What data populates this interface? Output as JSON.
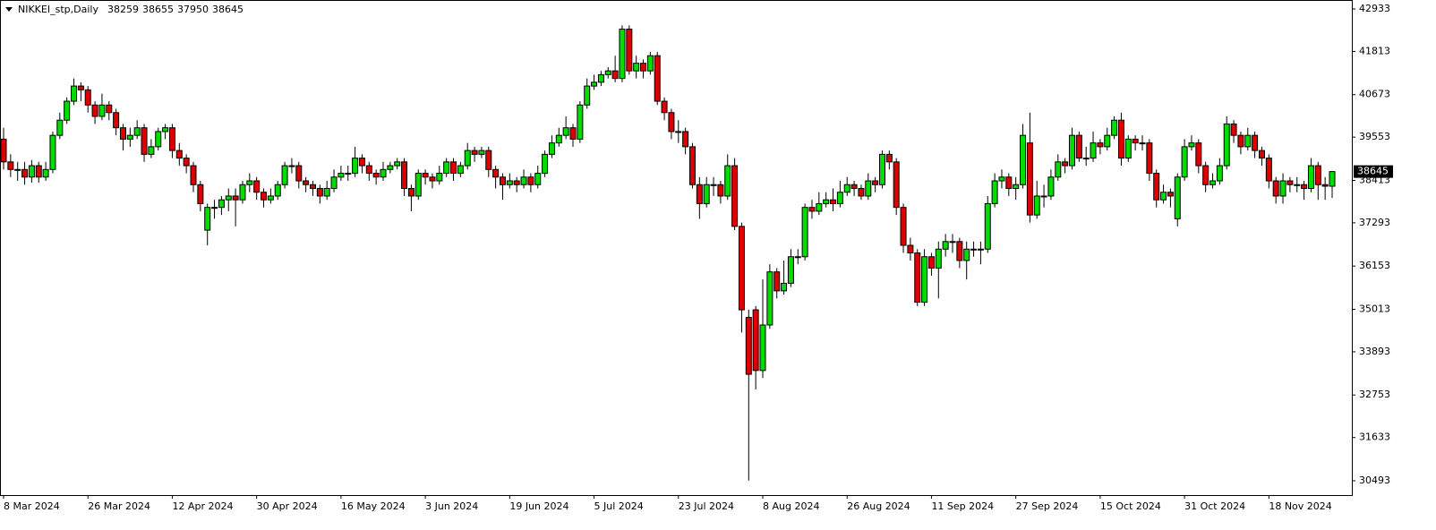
{
  "chart_data": {
    "type": "candlestick",
    "title": "NIKKEI_stp,Daily",
    "categories": [
      "8 Mar 2024",
      null,
      null,
      null,
      null,
      null,
      null,
      null,
      null,
      null,
      null,
      null,
      "26 Mar 2024",
      null,
      null,
      null,
      null,
      null,
      null,
      null,
      null,
      null,
      null,
      null,
      "12 Apr 2024",
      null,
      null,
      null,
      null,
      null,
      null,
      null,
      null,
      null,
      null,
      null,
      "30 Apr 2024",
      null,
      null,
      null,
      null,
      null,
      null,
      null,
      null,
      null,
      null,
      null,
      "16 May 2024",
      null,
      null,
      null,
      null,
      null,
      null,
      null,
      null,
      null,
      null,
      null,
      "3 Jun 2024",
      null,
      null,
      null,
      null,
      null,
      null,
      null,
      null,
      null,
      null,
      null,
      "19 Jun 2024",
      null,
      null,
      null,
      null,
      null,
      null,
      null,
      null,
      null,
      null,
      null,
      "5 Jul 2024",
      null,
      null,
      null,
      null,
      null,
      null,
      null,
      null,
      null,
      null,
      null,
      "23 Jul 2024",
      null,
      null,
      null,
      null,
      null,
      null,
      null,
      null,
      null,
      null,
      null,
      "8 Aug 2024",
      null,
      null,
      null,
      null,
      null,
      null,
      null,
      null,
      null,
      null,
      null,
      "26 Aug 2024",
      null,
      null,
      null,
      null,
      null,
      null,
      null,
      null,
      null,
      null,
      null,
      "11 Sep 2024",
      null,
      null,
      null,
      null,
      null,
      null,
      null,
      null,
      null,
      null,
      null,
      "27 Sep 2024",
      null,
      null,
      null,
      null,
      null,
      null,
      null,
      null,
      null,
      null,
      null,
      "15 Oct 2024",
      null,
      null,
      null,
      null,
      null,
      null,
      null,
      null,
      null,
      null,
      null,
      "31 Oct 2024",
      null,
      null,
      null,
      null,
      null,
      null,
      null,
      null,
      null,
      null,
      null,
      "18 Nov 2024",
      null,
      null,
      null,
      null,
      null,
      null,
      null,
      null,
      null
    ],
    "open": [
      39500,
      38900,
      38700,
      38700,
      38500,
      38800,
      38500,
      38700,
      39600,
      40000,
      40500,
      40900,
      40800,
      40400,
      40100,
      40400,
      40200,
      39800,
      39500,
      39600,
      39800,
      39100,
      39300,
      39700,
      39800,
      39200,
      39000,
      38800,
      38300,
      37100,
      37700,
      37700,
      37900,
      38000,
      37900,
      38300,
      38400,
      38100,
      37900,
      38000,
      38300,
      38800,
      38800,
      38400,
      38300,
      38200,
      38000,
      38200,
      38500,
      38600,
      38600,
      39000,
      38800,
      38600,
      38500,
      38700,
      38800,
      38900,
      38200,
      38000,
      38600,
      38500,
      38400,
      38600,
      38900,
      38600,
      38800,
      39200,
      39100,
      39200,
      38700,
      38500,
      38300,
      38400,
      38300,
      38500,
      38300,
      38600,
      39100,
      39400,
      39600,
      39800,
      39500,
      40400,
      40900,
      41000,
      41200,
      41300,
      41100,
      42400,
      41300,
      41500,
      41300,
      41700,
      40500,
      40200,
      39700,
      39700,
      39300,
      38300,
      37800,
      38300,
      38300,
      38000,
      38800,
      37200,
      34800,
      35000,
      33400,
      34600,
      36000,
      35500,
      35700,
      36400,
      36400,
      37700,
      37600,
      37800,
      37900,
      37800,
      38100,
      38300,
      38200,
      38000,
      38400,
      38300,
      39100,
      38900,
      37700,
      36700,
      36500,
      35200,
      36400,
      36100,
      36600,
      36800,
      36800,
      36300,
      36600,
      36600,
      36600,
      37800,
      38400,
      38500,
      38200,
      38300,
      39400,
      37500,
      38000,
      38000,
      38500,
      38900,
      38800,
      39600,
      39000,
      39000,
      39400,
      39300,
      39600,
      40000,
      39000,
      39500,
      39400,
      39400,
      38600,
      37900,
      38100,
      37400,
      38500,
      39300,
      39400,
      38800,
      38300,
      38400,
      38800,
      39900,
      39600,
      39300,
      39600,
      39200,
      39000,
      38400,
      38000,
      38400,
      38300,
      38300,
      38200,
      38800,
      38300,
      38259
    ],
    "high": [
      39800,
      39100,
      38900,
      38900,
      38950,
      38900,
      38900,
      39700,
      40200,
      40600,
      41100,
      41000,
      40900,
      40500,
      40700,
      40500,
      40300,
      39900,
      39800,
      40000,
      39900,
      39500,
      39800,
      39900,
      39900,
      39400,
      39100,
      38900,
      38400,
      37800,
      37900,
      38000,
      38200,
      38200,
      38400,
      38600,
      38500,
      38200,
      38200,
      38400,
      38900,
      39000,
      38900,
      38500,
      38400,
      38300,
      38400,
      38700,
      38800,
      38800,
      39300,
      39100,
      38900,
      38700,
      38900,
      38900,
      39000,
      39000,
      38300,
      38700,
      38700,
      38600,
      38800,
      39000,
      39000,
      38900,
      39400,
      39300,
      39300,
      39300,
      38800,
      38600,
      38600,
      38500,
      38700,
      38600,
      38800,
      39200,
      39600,
      39800,
      40100,
      39900,
      40500,
      41100,
      41200,
      41300,
      41400,
      41700,
      42500,
      42500,
      41700,
      41600,
      41800,
      41800,
      40600,
      40300,
      40000,
      39800,
      39400,
      38500,
      38500,
      38500,
      38400,
      39100,
      39000,
      37300,
      35000,
      35100,
      35800,
      36200,
      36100,
      36300,
      36600,
      36600,
      37800,
      37900,
      38100,
      38100,
      38200,
      38400,
      38500,
      38400,
      38300,
      38600,
      38500,
      39200,
      39200,
      39000,
      37800,
      36900,
      36600,
      36600,
      36500,
      36800,
      37000,
      37000,
      36900,
      36800,
      36800,
      36800,
      38000,
      38600,
      38700,
      38600,
      38500,
      39900,
      40200,
      38400,
      38300,
      38700,
      39100,
      39000,
      39800,
      39700,
      39300,
      39700,
      39500,
      39800,
      40100,
      40200,
      39600,
      39600,
      39600,
      39500,
      38700,
      38300,
      38200,
      38600,
      39500,
      39600,
      39500,
      38900,
      38600,
      39000,
      40100,
      40000,
      39700,
      39800,
      39700,
      39300,
      39100,
      38500,
      38600,
      38500,
      38500,
      38400,
      39000,
      38900,
      38500,
      38655
    ],
    "low": [
      38700,
      38500,
      38400,
      38300,
      38350,
      38350,
      38400,
      38600,
      39500,
      39900,
      40400,
      40500,
      40200,
      39900,
      40000,
      40000,
      39600,
      39200,
      39300,
      39500,
      38900,
      39000,
      39200,
      39500,
      39000,
      38800,
      38600,
      38100,
      37600,
      36700,
      37400,
      37500,
      37600,
      37200,
      37800,
      38100,
      37900,
      37700,
      37800,
      37900,
      38200,
      38600,
      38200,
      38100,
      38000,
      37800,
      37900,
      38100,
      38400,
      38400,
      38500,
      38600,
      38400,
      38300,
      38400,
      38600,
      38700,
      38000,
      37600,
      37900,
      38300,
      38200,
      38300,
      38500,
      38400,
      38500,
      38700,
      38900,
      39000,
      38500,
      38200,
      37900,
      38200,
      38100,
      38200,
      38100,
      38200,
      38500,
      39000,
      39300,
      39500,
      39300,
      39400,
      40300,
      40800,
      40900,
      41100,
      41000,
      41000,
      41200,
      41100,
      41100,
      41200,
      40400,
      40000,
      39500,
      39400,
      39100,
      38200,
      37400,
      37700,
      38000,
      37800,
      37900,
      37100,
      34400,
      30500,
      32900,
      33200,
      34500,
      35300,
      35400,
      35600,
      36200,
      36300,
      37400,
      37500,
      37700,
      37600,
      37700,
      38000,
      38000,
      37900,
      37900,
      38100,
      38200,
      38700,
      37500,
      36500,
      36300,
      35100,
      35100,
      35900,
      35300,
      36400,
      36500,
      36100,
      35800,
      36400,
      36200,
      36500,
      37700,
      38200,
      38000,
      37900,
      38200,
      37300,
      37400,
      37700,
      37900,
      38400,
      38600,
      38700,
      38900,
      38800,
      38900,
      39100,
      39200,
      39500,
      38800,
      38900,
      39200,
      39200,
      38400,
      37700,
      37800,
      37700,
      37200,
      38400,
      39200,
      38600,
      38100,
      38200,
      38300,
      38700,
      39400,
      39100,
      39200,
      39000,
      38800,
      38200,
      37800,
      37800,
      38100,
      38100,
      37900,
      38100,
      37900,
      37900,
      37950
    ],
    "close": [
      38900,
      38700,
      38700,
      38500,
      38800,
      38500,
      38700,
      39600,
      40000,
      40500,
      40900,
      40800,
      40400,
      40100,
      40400,
      40200,
      39800,
      39500,
      39600,
      39800,
      39100,
      39300,
      39700,
      39800,
      39200,
      39000,
      38800,
      38300,
      37800,
      37700,
      37700,
      37900,
      38000,
      37900,
      38300,
      38400,
      38100,
      37900,
      38000,
      38300,
      38800,
      38800,
      38400,
      38300,
      38200,
      38000,
      38200,
      38500,
      38600,
      38600,
      39000,
      38800,
      38600,
      38500,
      38700,
      38800,
      38900,
      38200,
      38000,
      38600,
      38500,
      38400,
      38600,
      38900,
      38600,
      38800,
      39200,
      39100,
      39200,
      38700,
      38500,
      38300,
      38400,
      38300,
      38500,
      38300,
      38600,
      39100,
      39400,
      39600,
      39800,
      39500,
      40400,
      40900,
      41000,
      41200,
      41300,
      41100,
      42400,
      41300,
      41500,
      41300,
      41700,
      40500,
      40200,
      39700,
      39700,
      39300,
      38300,
      37800,
      38300,
      38300,
      38000,
      38800,
      37200,
      35000,
      33300,
      33400,
      34600,
      36000,
      35500,
      35700,
      36400,
      36400,
      37700,
      37600,
      37800,
      37900,
      37800,
      38100,
      38300,
      38200,
      38000,
      38400,
      38300,
      39100,
      38900,
      37700,
      36700,
      36500,
      35200,
      36400,
      36100,
      36600,
      36800,
      36800,
      36300,
      36600,
      36600,
      36600,
      37800,
      38400,
      38500,
      38200,
      38300,
      39600,
      37500,
      38000,
      38000,
      38500,
      38900,
      38800,
      39600,
      39000,
      39000,
      39400,
      39300,
      39600,
      40000,
      39000,
      39500,
      39400,
      39400,
      38600,
      37900,
      38100,
      38000,
      38500,
      39300,
      39400,
      38800,
      38300,
      38400,
      38800,
      39900,
      39600,
      39300,
      39600,
      39200,
      39000,
      38400,
      38000,
      38400,
      38300,
      38300,
      38200,
      38800,
      38300,
      38259,
      38645
    ],
    "up_color": "#00dd00",
    "down_color": "#dd0000",
    "ylim": [
      30115,
      43145
    ],
    "yticks": [
      42933,
      41813,
      40673,
      39553,
      38413,
      37293,
      36153,
      35013,
      33893,
      32753,
      31633,
      30493
    ]
  }
}
